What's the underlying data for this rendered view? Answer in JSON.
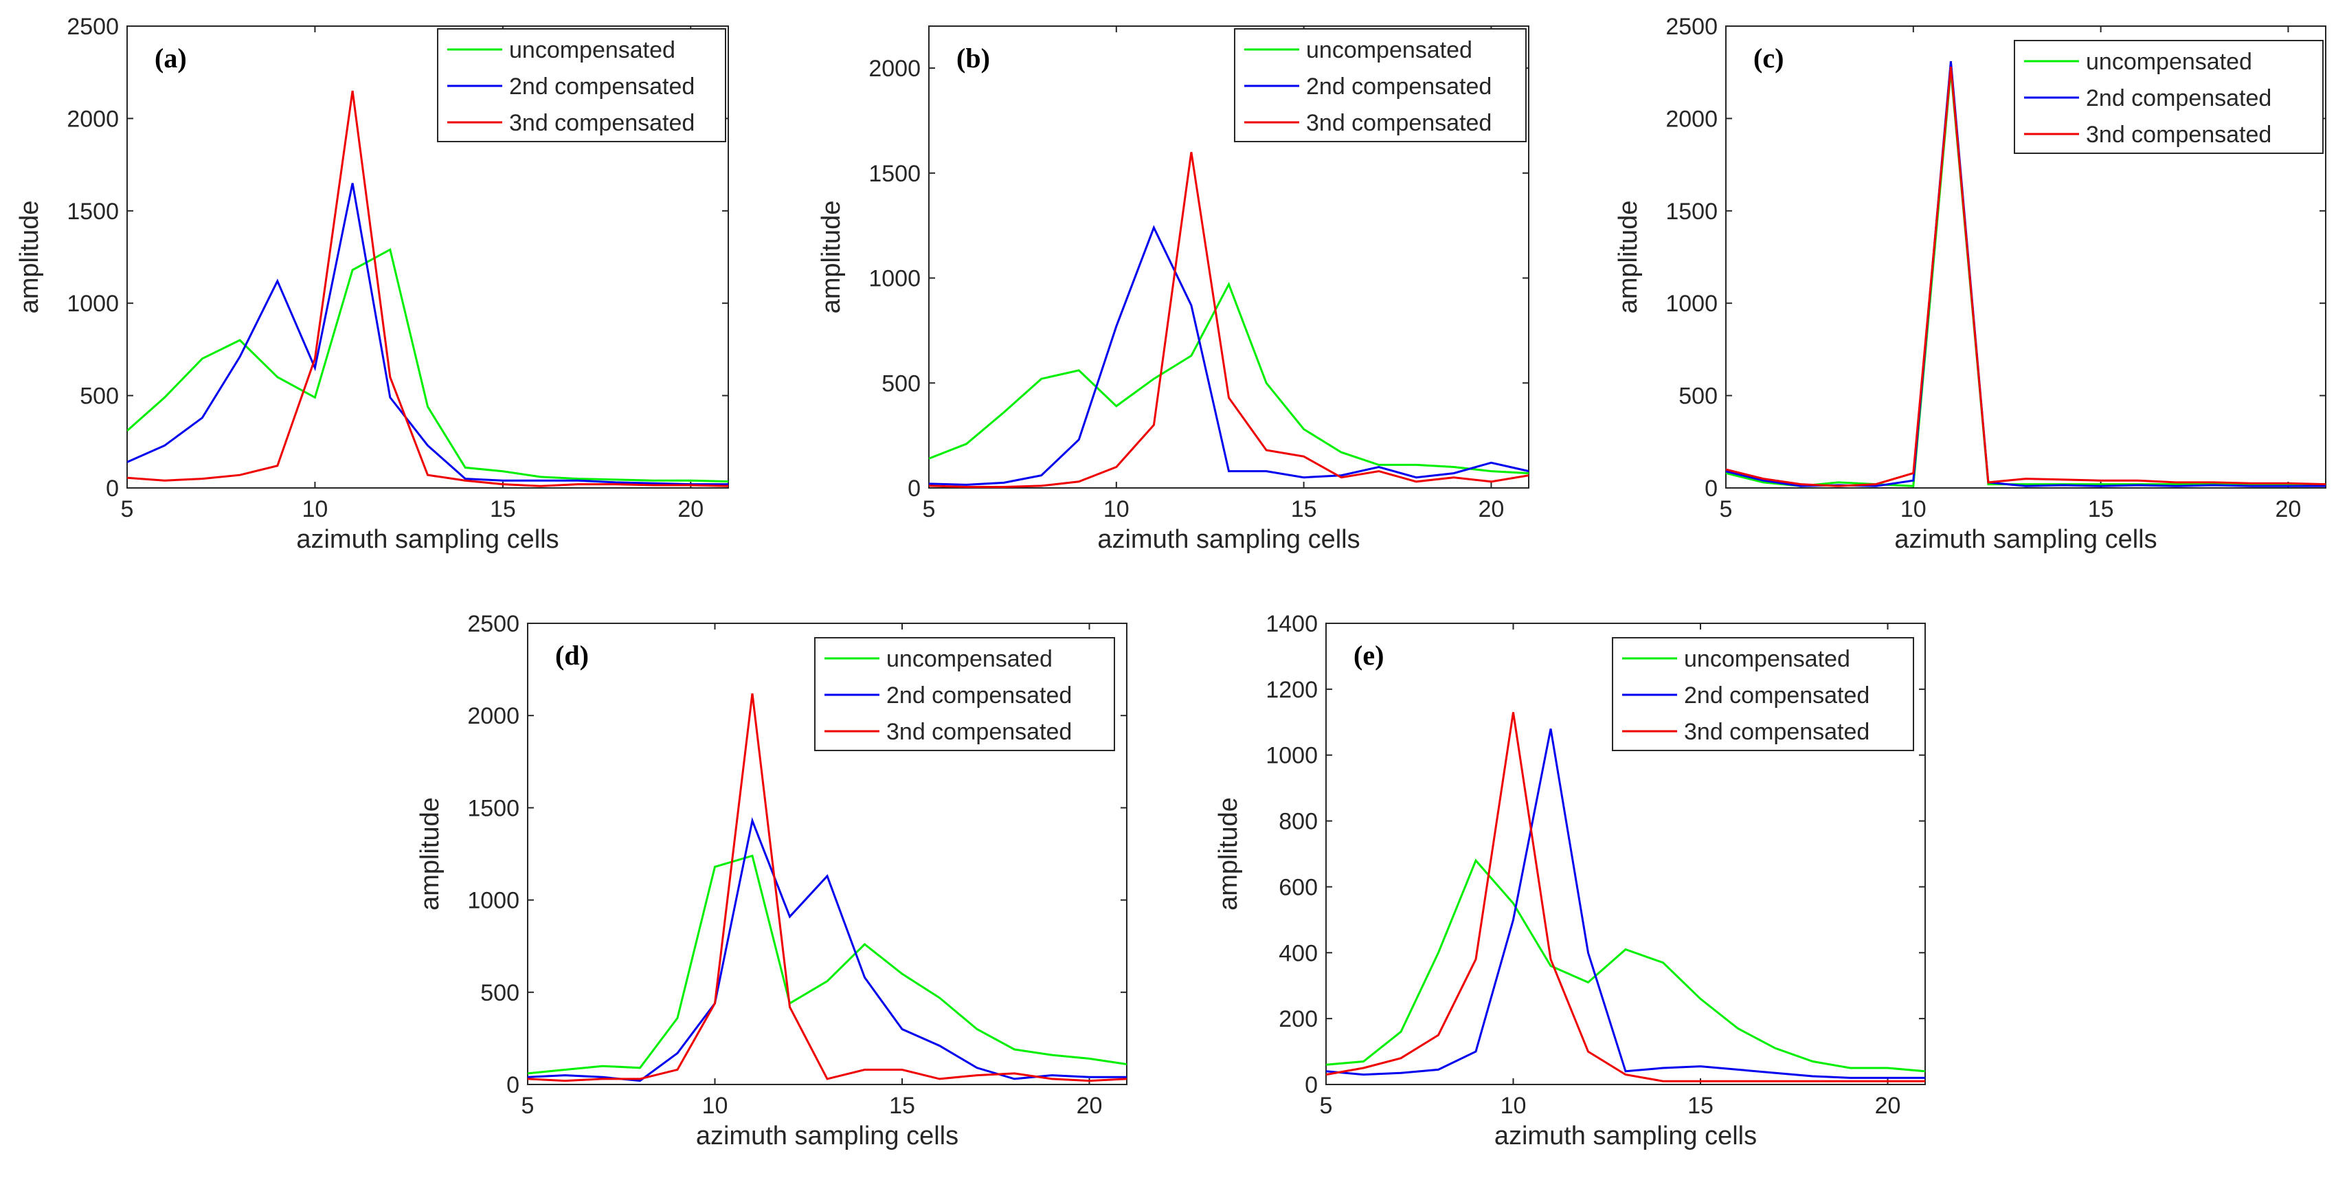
{
  "chart_data": [
    {
      "panel": "(a)",
      "type": "line",
      "xlabel": "azimuth sampling cells",
      "ylabel": "amplitude",
      "xlim": [
        5,
        21
      ],
      "ylim": [
        0,
        2500
      ],
      "xticks": [
        5,
        10,
        15,
        20
      ],
      "yticks": [
        0,
        500,
        1000,
        1500,
        2000,
        2500
      ],
      "legend_position": "top-right",
      "x": [
        5,
        6,
        7,
        8,
        9,
        10,
        11,
        12,
        13,
        14,
        15,
        16,
        17,
        18,
        19,
        20,
        21
      ],
      "series": [
        {
          "name": "uncompensated",
          "color": "#00ee00",
          "values": [
            310,
            490,
            700,
            800,
            600,
            490,
            1180,
            1290,
            440,
            110,
            90,
            60,
            50,
            45,
            40,
            40,
            35
          ]
        },
        {
          "name": "2nd compensated",
          "color": "#0000ee",
          "values": [
            140,
            230,
            380,
            710,
            1120,
            650,
            1650,
            490,
            230,
            50,
            40,
            40,
            40,
            30,
            25,
            20,
            20
          ]
        },
        {
          "name": "3nd compensated",
          "color": "#ee0000",
          "values": [
            55,
            40,
            50,
            70,
            120,
            700,
            2150,
            600,
            70,
            40,
            20,
            10,
            20,
            20,
            15,
            15,
            10
          ]
        }
      ]
    },
    {
      "panel": "(b)",
      "type": "line",
      "xlabel": "azimuth sampling cells",
      "ylabel": "amplitude",
      "xlim": [
        5,
        21
      ],
      "ylim": [
        0,
        2200
      ],
      "xticks": [
        5,
        10,
        15,
        20
      ],
      "yticks": [
        0,
        500,
        1000,
        1500,
        2000
      ],
      "legend_position": "top-right",
      "x": [
        5,
        6,
        7,
        8,
        9,
        10,
        11,
        12,
        13,
        14,
        15,
        16,
        17,
        18,
        19,
        20,
        21
      ],
      "series": [
        {
          "name": "uncompensated",
          "color": "#00ee00",
          "values": [
            140,
            210,
            360,
            520,
            560,
            390,
            520,
            630,
            970,
            500,
            280,
            170,
            110,
            110,
            100,
            80,
            70
          ]
        },
        {
          "name": "2nd compensated",
          "color": "#0000ee",
          "values": [
            20,
            15,
            25,
            60,
            230,
            770,
            1240,
            870,
            80,
            80,
            50,
            60,
            100,
            50,
            70,
            120,
            80
          ]
        },
        {
          "name": "3nd compensated",
          "color": "#ee0000",
          "values": [
            10,
            5,
            5,
            10,
            30,
            100,
            300,
            1600,
            430,
            180,
            150,
            50,
            80,
            30,
            50,
            30,
            60
          ]
        }
      ]
    },
    {
      "panel": "(c)",
      "type": "line",
      "xlabel": "azimuth sampling cells",
      "ylabel": "amplitude",
      "xlim": [
        5,
        21
      ],
      "ylim": [
        0,
        2500
      ],
      "xticks": [
        5,
        10,
        15,
        20
      ],
      "yticks": [
        0,
        500,
        1000,
        1500,
        2000,
        2500
      ],
      "legend_position": "top-right",
      "x": [
        5,
        6,
        7,
        8,
        9,
        10,
        11,
        12,
        13,
        14,
        15,
        16,
        17,
        18,
        19,
        20,
        21
      ],
      "series": [
        {
          "name": "uncompensated",
          "color": "#00ee00",
          "values": [
            80,
            30,
            10,
            30,
            20,
            10,
            2260,
            20,
            20,
            20,
            20,
            20,
            20,
            20,
            20,
            20,
            20
          ]
        },
        {
          "name": "2nd compensated",
          "color": "#0000ee",
          "values": [
            90,
            40,
            10,
            15,
            10,
            40,
            2310,
            30,
            10,
            15,
            10,
            15,
            10,
            15,
            10,
            10,
            10
          ]
        },
        {
          "name": "3nd compensated",
          "color": "#ee0000",
          "values": [
            100,
            50,
            20,
            10,
            20,
            80,
            2280,
            30,
            50,
            45,
            40,
            40,
            30,
            30,
            25,
            25,
            20
          ]
        }
      ]
    },
    {
      "panel": "(d)",
      "type": "line",
      "xlabel": "azimuth sampling cells",
      "ylabel": "amplitude",
      "xlim": [
        5,
        21
      ],
      "ylim": [
        0,
        2500
      ],
      "xticks": [
        5,
        10,
        15,
        20
      ],
      "yticks": [
        0,
        500,
        1000,
        1500,
        2000,
        2500
      ],
      "legend_position": "top-right",
      "x": [
        5,
        6,
        7,
        8,
        9,
        10,
        11,
        12,
        13,
        14,
        15,
        16,
        17,
        18,
        19,
        20,
        21
      ],
      "series": [
        {
          "name": "uncompensated",
          "color": "#00ee00",
          "values": [
            60,
            80,
            100,
            90,
            360,
            1180,
            1240,
            440,
            560,
            760,
            600,
            470,
            300,
            190,
            160,
            140,
            110
          ]
        },
        {
          "name": "2nd compensated",
          "color": "#0000ee",
          "values": [
            40,
            50,
            40,
            20,
            170,
            440,
            1430,
            910,
            1130,
            580,
            300,
            210,
            90,
            30,
            50,
            40,
            40
          ]
        },
        {
          "name": "3nd compensated",
          "color": "#ee0000",
          "values": [
            30,
            20,
            30,
            30,
            80,
            440,
            2120,
            420,
            30,
            80,
            80,
            30,
            50,
            60,
            30,
            20,
            30
          ]
        }
      ]
    },
    {
      "panel": "(e)",
      "type": "line",
      "xlabel": "azimuth sampling cells",
      "ylabel": "amplitude",
      "xlim": [
        5,
        21
      ],
      "ylim": [
        0,
        1400
      ],
      "xticks": [
        5,
        10,
        15,
        20
      ],
      "yticks": [
        0,
        200,
        400,
        600,
        800,
        1000,
        1200,
        1400
      ],
      "legend_position": "top-right",
      "x": [
        5,
        6,
        7,
        8,
        9,
        10,
        11,
        12,
        13,
        14,
        15,
        16,
        17,
        18,
        19,
        20,
        21
      ],
      "series": [
        {
          "name": "uncompensated",
          "color": "#00ee00",
          "values": [
            60,
            70,
            160,
            400,
            680,
            550,
            360,
            310,
            410,
            370,
            260,
            170,
            110,
            70,
            50,
            50,
            40
          ]
        },
        {
          "name": "2nd compensated",
          "color": "#0000ee",
          "values": [
            40,
            30,
            35,
            45,
            100,
            500,
            1080,
            400,
            40,
            50,
            55,
            45,
            35,
            25,
            20,
            20,
            20
          ]
        },
        {
          "name": "3nd compensated",
          "color": "#ee0000",
          "values": [
            30,
            50,
            80,
            150,
            380,
            1130,
            380,
            100,
            30,
            10,
            10,
            10,
            10,
            10,
            10,
            10,
            10
          ]
        }
      ]
    }
  ]
}
